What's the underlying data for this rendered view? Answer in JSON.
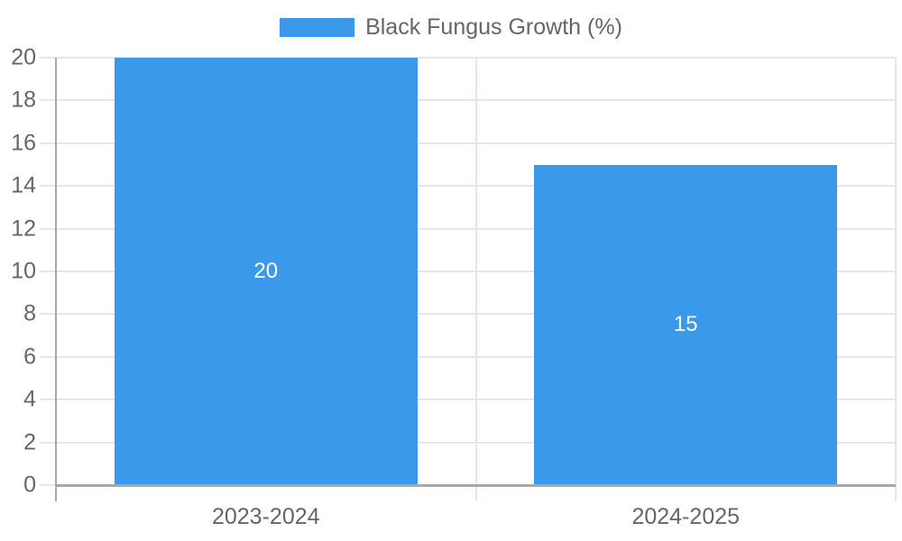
{
  "chart_data": {
    "type": "bar",
    "title": "Black Fungus Growth (%)",
    "xlabel": "",
    "ylabel": "",
    "categories": [
      "2023-2024",
      "2024-2025"
    ],
    "series": [
      {
        "name": "Black Fungus Growth (%)",
        "values": [
          20,
          15
        ],
        "data_labels": [
          "20",
          "15"
        ],
        "color": "#3b99ec"
      }
    ],
    "ylim": [
      0,
      20
    ],
    "ytick_step": 2,
    "yticks": [
      0,
      2,
      4,
      6,
      8,
      10,
      12,
      14,
      16,
      18,
      20
    ],
    "grid": true,
    "legend": {
      "position": "top",
      "label": "Black Fungus Growth (%)"
    },
    "colors": {
      "bar": "#3b99ec",
      "text": "#666666",
      "grid": "#e6e6e6",
      "axis": "#a8a8a8",
      "data_label": "#ffffff",
      "background": "#ffffff"
    }
  }
}
